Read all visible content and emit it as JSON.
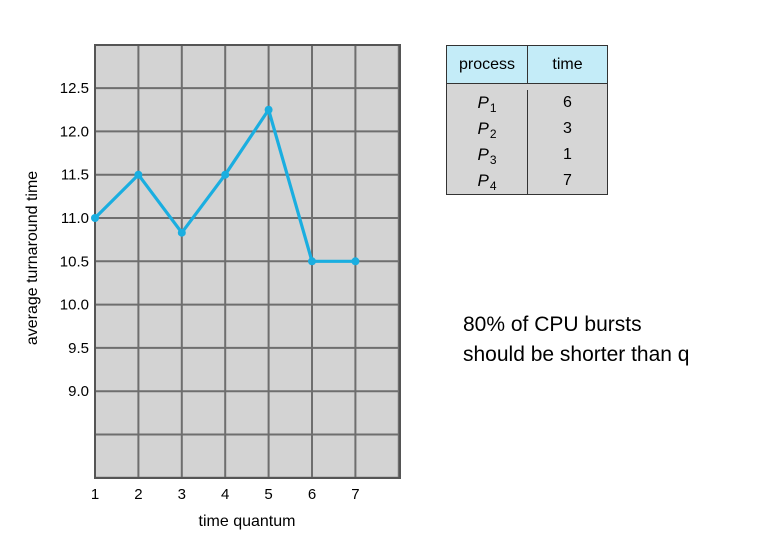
{
  "chart_data": {
    "type": "line",
    "xlabel": "time quantum",
    "ylabel": "average turnaround time",
    "x": [
      1,
      2,
      3,
      4,
      5,
      6,
      7
    ],
    "xticks": [
      "1",
      "2",
      "3",
      "4",
      "5",
      "6",
      "7"
    ],
    "yticks": [
      "12.5",
      "12.0",
      "11.5",
      "11.0",
      "10.5",
      "10.0",
      "9.5",
      "9.0"
    ],
    "series": [
      {
        "values": [
          11.0,
          11.5,
          10.83,
          11.5,
          12.25,
          10.5,
          10.5
        ],
        "color": "#1aaee0"
      }
    ],
    "xlim": [
      1,
      8
    ],
    "ylim": [
      8.0,
      13.0
    ],
    "grid": true,
    "plot_background": "#d3d3d3",
    "grid_color": "#6e6e6e"
  },
  "table": {
    "headers": [
      "process",
      "time"
    ],
    "rows": [
      {
        "process": "P",
        "sub": "1",
        "time": "6"
      },
      {
        "process": "P",
        "sub": "2",
        "time": "3"
      },
      {
        "process": "P",
        "sub": "3",
        "time": "1"
      },
      {
        "process": "P",
        "sub": "4",
        "time": "7"
      }
    ],
    "header_color": "#c4ecf8",
    "body_color": "#d6d6d6"
  },
  "note": "80% of CPU bursts\nshould be shorter than q"
}
